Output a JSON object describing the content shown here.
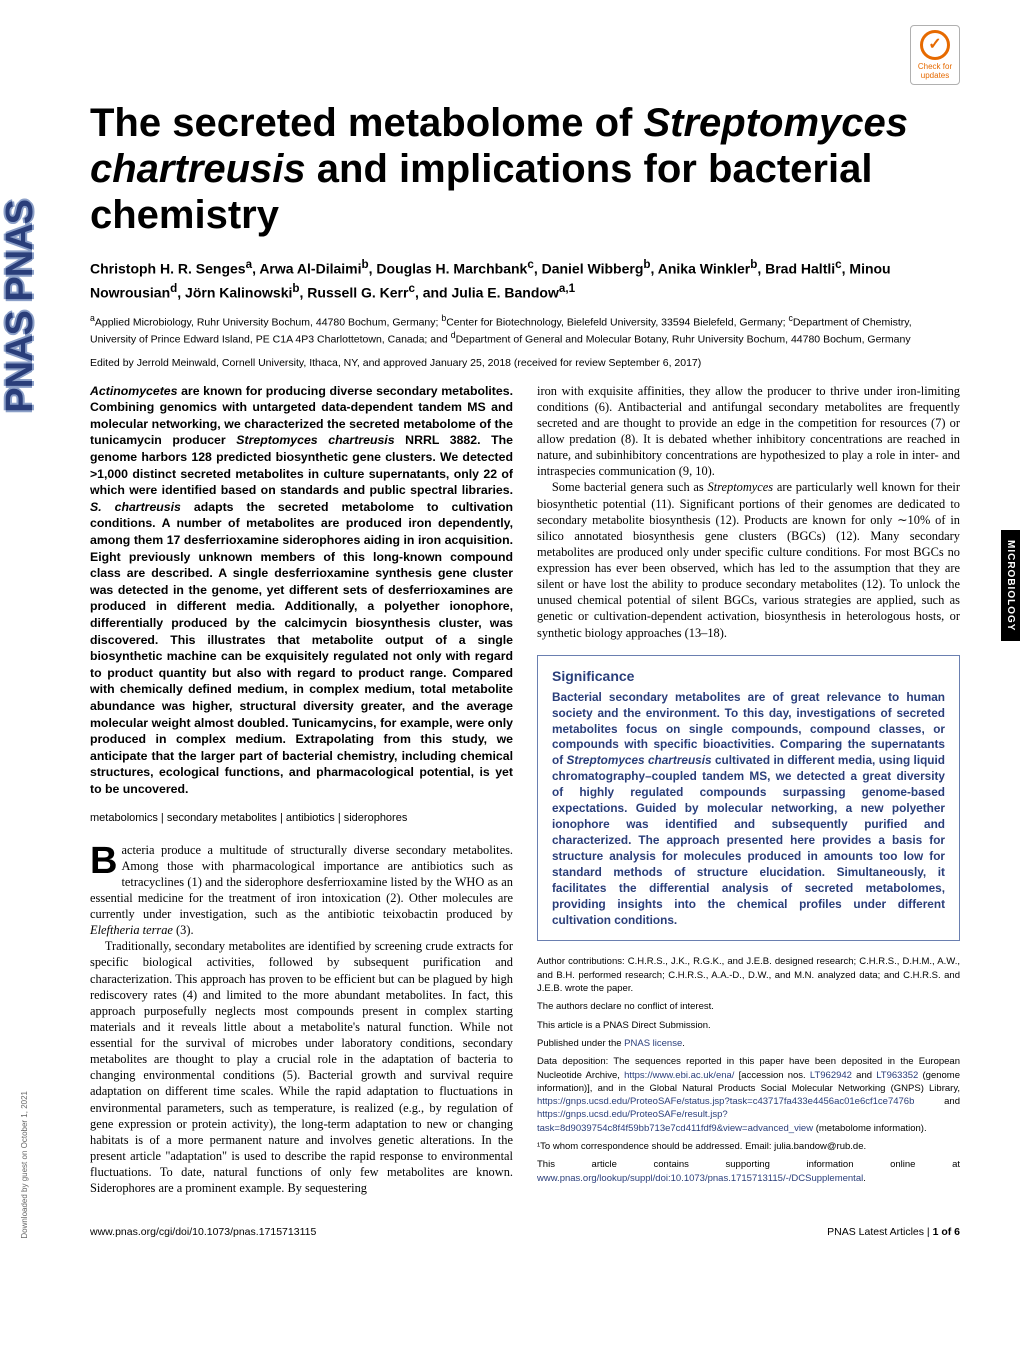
{
  "badge": {
    "top": "Check for",
    "bottom": "updates"
  },
  "sideLogo": "PNAS  PNAS",
  "sideTab": "MICROBIOLOGY",
  "downloadNote": "Downloaded by guest on October 1, 2021",
  "title": {
    "pre": "The secreted metabolome of ",
    "species": "Streptomyces chartreusis",
    "post": " and implications for bacterial chemistry"
  },
  "authors_html": "Christoph H. R. Senges<sup>a</sup>, Arwa Al-Dilaimi<sup>b</sup>, Douglas H. Marchbank<sup>c</sup>, Daniel Wibberg<sup>b</sup>, Anika Winkler<sup>b</sup>, Brad Haltli<sup>c</sup>, Minou Nowrousian<sup>d</sup>, Jörn Kalinowski<sup>b</sup>, Russell G. Kerr<sup>c</sup>, and Julia E. Bandow<sup>a,1</sup>",
  "affils_html": "<sup>a</sup>Applied Microbiology, Ruhr University Bochum, 44780 Bochum, Germany; <sup>b</sup>Center for Biotechnology, Bielefeld University, 33594 Bielefeld, Germany; <sup>c</sup>Department of Chemistry, University of Prince Edward Island, PE C1A 4P3 Charlottetown, Canada; and <sup>d</sup>Department of General and Molecular Botany, Ruhr University Bochum, 44780 Bochum, Germany",
  "editor": "Edited by Jerrold Meinwald, Cornell University, Ithaca, NY, and approved January 25, 2018 (received for review September 6, 2017)",
  "abstract_html": "<span class=\"ital\">Actinomycetes</span> are known for producing diverse secondary metabolites. Combining genomics with untargeted data-dependent tandem MS and molecular networking, we characterized the secreted metabolome of the tunicamycin producer <span class=\"ital\">Streptomyces chartreusis</span> NRRL 3882. The genome harbors 128 predicted biosynthetic gene clusters. We detected &gt;1,000 distinct secreted metabolites in culture supernatants, only 22 of which were identified based on standards and public spectral libraries. <span class=\"ital\">S. chartreusis</span> adapts the secreted metabolome to cultivation conditions. A number of metabolites are produced iron dependently, among them 17 desferrioxamine siderophores aiding in iron acquisition. Eight previously unknown members of this long-known compound class are described. A single desferrioxamine synthesis gene cluster was detected in the genome, yet different sets of desferrioxamines are produced in different media. Additionally, a polyether ionophore, differentially produced by the calcimycin biosynthesis cluster, was discovered. This illustrates that metabolite output of a single biosynthetic machine can be exquisitely regulated not only with regard to product quantity but also with regard to product range. Compared with chemically defined medium, in complex medium, total metabolite abundance was higher, structural diversity greater, and the average molecular weight almost doubled. Tunicamycins, for example, were only produced in complex medium. Extrapolating from this study, we anticipate that the larger part of bacterial chemistry, including chemical structures, ecological functions, and pharmacological potential, is yet to be uncovered.",
  "keywords": "metabolomics | secondary metabolites | antibiotics | siderophores",
  "body_left_html": "<p><span class=\"dropcap\">B</span>acteria produce a multitude of structurally diverse secondary metabolites. Among those with pharmacological importance are antibiotics such as tetracyclines (1) and the siderophore desferrioxamine listed by the WHO as an essential medicine for the treatment of iron intoxication (2). Other molecules are currently under investigation, such as the antibiotic teixobactin produced by <span class=\"ital\">Eleftheria terrae</span> (3).</p><p>Traditionally, secondary metabolites are identified by screening crude extracts for specific biological activities, followed by subsequent purification and characterization. This approach has proven to be efficient but can be plagued by high rediscovery rates (4) and limited to the more abundant metabolites. In fact, this approach purposefully neglects most compounds present in complex starting materials and it reveals little about a metabolite's natural function. While not essential for the survival of microbes under laboratory conditions, secondary metabolites are thought to play a crucial role in the adaptation of bacteria to changing environmental conditions (5). Bacterial growth and survival require adaptation on different time scales. While the rapid adaptation to fluctuations in environmental parameters, such as temperature, is realized (e.g., by regulation of gene expression or protein activity), the long-term adaptation to new or changing habitats is of a more permanent nature and involves genetic alterations. In the present article \"adaptation\" is used to describe the rapid response to environmental fluctuations. To date, natural functions of only few metabolites are known. Siderophores are a prominent example. By sequestering</p>",
  "body_right_html": "<p>iron with exquisite affinities, they allow the producer to thrive under iron-limiting conditions (6). Antibacterial and antifungal secondary metabolites are frequently secreted and are thought to provide an edge in the competition for resources (7) or allow predation (8). It is debated whether inhibitory concentrations are reached in nature, and subinhibitory concentrations are hypothesized to play a role in inter- and intraspecies communication (9, 10).</p><p>Some bacterial genera such as <span class=\"ital\">Streptomyces</span> are particularly well known for their biosynthetic potential (11). Significant portions of their genomes are dedicated to secondary metabolite biosynthesis (12). Products are known for only ∼10% of in silico annotated biosynthesis gene clusters (BGCs) (12). Many secondary metabolites are produced only under specific culture conditions. For most BGCs no expression has ever been observed, which has led to the assumption that they are silent or have lost the ability to produce secondary metabolites (12). To unlock the unused chemical potential of silent BGCs, various strategies are applied, such as genetic or cultivation-dependent activation, biosynthesis in heterologous hosts, or synthetic biology approaches (13–18).</p>",
  "significance": {
    "heading": "Significance",
    "text_html": "Bacterial secondary metabolites are of great relevance to human society and the environment. To this day, investigations of secreted metabolites focus on single compounds, compound classes, or compounds with specific bioactivities. Comparing the supernatants of <span class=\"ital\">Streptomyces chartreusis</span> cultivated in different media, using liquid chromatography–coupled tandem MS, we detected a great diversity of highly regulated compounds surpassing genome-based expectations. Guided by molecular networking, a new polyether ionophore was identified and subsequently purified and characterized. The approach presented here provides a basis for structure analysis for molecules produced in amounts too low for standard methods of structure elucidation. Simultaneously, it facilitates the differential analysis of secreted metabolomes, providing insights into the chemical profiles under different cultivation conditions."
  },
  "meta": {
    "contrib": "Author contributions: C.H.R.S., J.K., R.G.K., and J.E.B. designed research; C.H.R.S., D.H.M., A.W., and B.H. performed research; C.H.R.S., A.A.-D., D.W., and M.N. analyzed data; and C.H.R.S. and J.E.B. wrote the paper.",
    "conflict": "The authors declare no conflict of interest.",
    "direct": "This article is a PNAS Direct Submission.",
    "license_pre": "Published under the ",
    "license_link": "PNAS license",
    "license_post": ".",
    "deposit_pre": "Data deposition: The sequences reported in this paper have been deposited in the European Nucleotide Archive, ",
    "deposit_url1": "https://www.ebi.ac.uk/ena/",
    "deposit_mid1": " [accession nos. ",
    "deposit_acc1": "LT962942",
    "deposit_mid2": " and ",
    "deposit_acc2": "LT963352",
    "deposit_mid3": " (genome information)], and in the Global Natural Products Social Molecular Networking (GNPS) Library, ",
    "deposit_url2": "https://gnps.ucsd.edu/ProteoSAFe/status.jsp?task=c43717fa433e4456ac01e6cf1ce7476b",
    "deposit_mid4": " and ",
    "deposit_url3": "https://gnps.ucsd.edu/ProteoSAFe/result.jsp?task=8d9039754c8f4f59bb713e7cd411fdf9&view=advanced_view",
    "deposit_post": " (metabolome information).",
    "corresp": "¹To whom correspondence should be addressed. Email: julia.bandow@rub.de.",
    "supp_pre": "This article contains supporting information online at ",
    "supp_url": "www.pnas.org/lookup/suppl/doi:10.1073/pnas.1715713115/-/DCSupplemental",
    "supp_post": "."
  },
  "footer": {
    "doi": "www.pnas.org/cgi/doi/10.1073/pnas.1715713115",
    "right_bold": "PNAS Latest Articles",
    "right_sep": " | ",
    "right_page": "1 of 6"
  }
}
